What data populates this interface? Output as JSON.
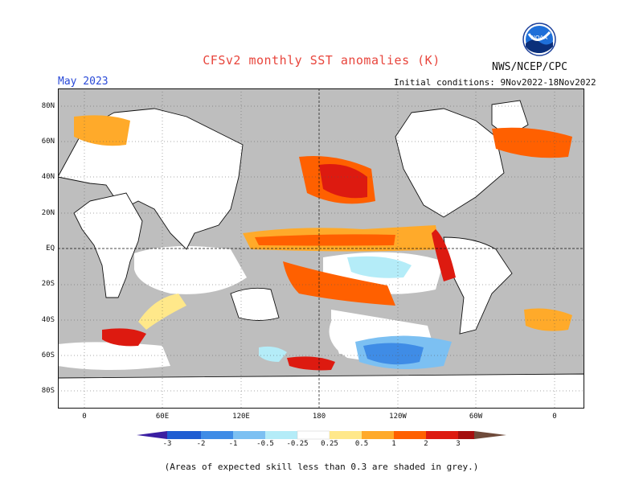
{
  "header": {
    "title": "CFSv2 monthly SST anomalies (K)",
    "organization": "NWS/NCEP/CPC",
    "valid_month": "May 2023",
    "initial_conditions": "Initial conditions: 9Nov2022-18Nov2022",
    "logo_text": "NOAA"
  },
  "map": {
    "lat_labels": [
      "80N",
      "60N",
      "40N",
      "20N",
      "EQ",
      "20S",
      "40S",
      "60S",
      "80S"
    ],
    "lon_labels": [
      "0",
      "60E",
      "120E",
      "180",
      "120W",
      "60W",
      "0"
    ],
    "grey_mask_color": "#bebebe",
    "land_color": "#ffffff"
  },
  "colorbar": {
    "tick_labels": [
      "-3",
      "-2",
      "-1",
      "-0.5",
      "-0.25",
      "0.25",
      "0.5",
      "1",
      "2",
      "3"
    ],
    "colors": [
      "#3a1ea2",
      "#1f5dd2",
      "#3f8ce6",
      "#7cc0f2",
      "#b4ecf8",
      "#ffffff",
      "#ffe88a",
      "#ffaa2a",
      "#ff6000",
      "#dd1a10",
      "#a40e0e",
      "#6e4a3a"
    ]
  },
  "footnote": "(Areas of expected skill less than 0.3 are shaded in grey.)"
}
